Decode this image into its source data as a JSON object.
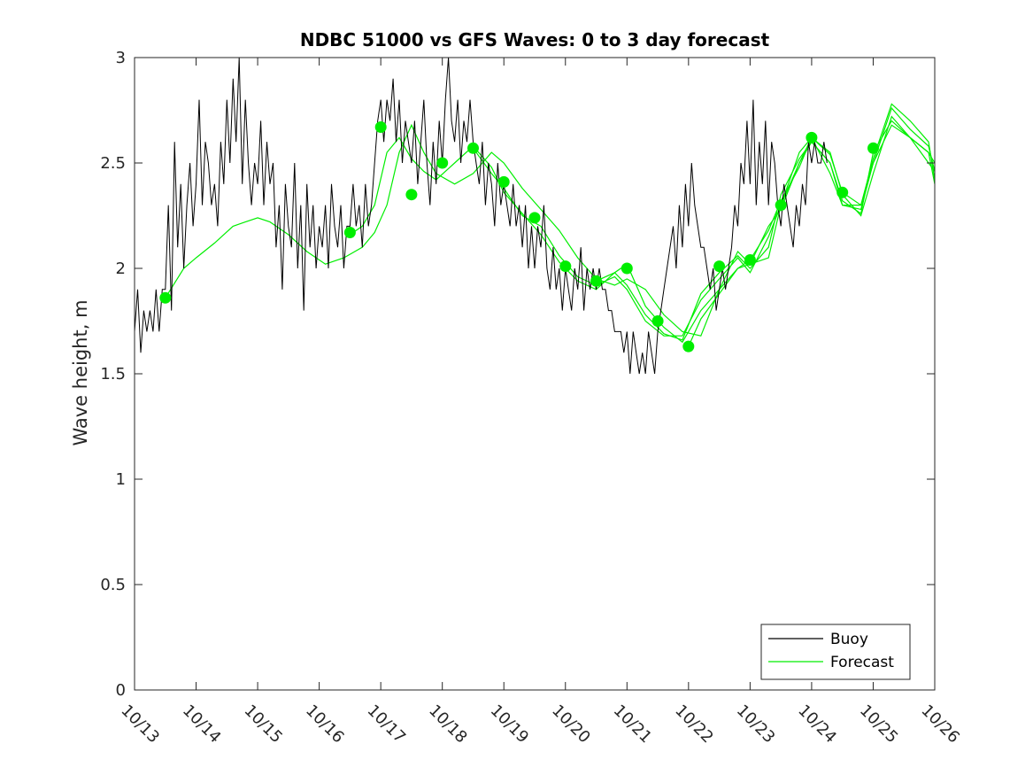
{
  "chart_data": {
    "type": "line",
    "title": "NDBC 51000 vs GFS Waves: 0 to 3 day forecast",
    "xlabel": "",
    "ylabel": "Wave height, m",
    "xlim": [
      "10/13",
      "10/26"
    ],
    "ylim": [
      0,
      3
    ],
    "y_ticks": [
      0,
      0.5,
      1,
      1.5,
      2,
      2.5,
      3
    ],
    "x_ticks": [
      "10/13",
      "10/14",
      "10/15",
      "10/16",
      "10/17",
      "10/18",
      "10/19",
      "10/20",
      "10/21",
      "10/22",
      "10/23",
      "10/24",
      "10/25",
      "10/26"
    ],
    "grid": false,
    "legend_position": "bottom-right",
    "colors": {
      "buoy": "#000000",
      "forecast": "#00ee00"
    },
    "series": [
      {
        "name": "Buoy",
        "x_days_from_1013": [
          0.0,
          0.05,
          0.1,
          0.15,
          0.2,
          0.25,
          0.3,
          0.35,
          0.4,
          0.45,
          0.5,
          0.55,
          0.6,
          0.65,
          0.7,
          0.75,
          0.8,
          0.85,
          0.9,
          0.95,
          1.0,
          1.05,
          1.1,
          1.15,
          1.2,
          1.25,
          1.3,
          1.35,
          1.4,
          1.45,
          1.5,
          1.55,
          1.6,
          1.65,
          1.7,
          1.75,
          1.8,
          1.85,
          1.9,
          1.95,
          2.0,
          2.05,
          2.1,
          2.15,
          2.2,
          2.25,
          2.3,
          2.35,
          2.4,
          2.45,
          2.5,
          2.55,
          2.6,
          2.65,
          2.7,
          2.75,
          2.8,
          2.85,
          2.9,
          2.95,
          3.0,
          3.05,
          3.1,
          3.15,
          3.2,
          3.25,
          3.3,
          3.35,
          3.4,
          3.45,
          3.5,
          3.55,
          3.6,
          3.65,
          3.7,
          3.75,
          3.8,
          3.85,
          3.9,
          3.95,
          4.0,
          4.05,
          4.1,
          4.15,
          4.2,
          4.25,
          4.3,
          4.35,
          4.4,
          4.45,
          4.5,
          4.55,
          4.6,
          4.65,
          4.7,
          4.75,
          4.8,
          4.85,
          4.9,
          4.95,
          5.0,
          5.05,
          5.1,
          5.15,
          5.2,
          5.25,
          5.3,
          5.35,
          5.4,
          5.45,
          5.5,
          5.55,
          5.6,
          5.65,
          5.7,
          5.75,
          5.8,
          5.85,
          5.9,
          5.95,
          6.0,
          6.05,
          6.1,
          6.15,
          6.2,
          6.25,
          6.3,
          6.35,
          6.4,
          6.45,
          6.5,
          6.55,
          6.6,
          6.65,
          6.7,
          6.75,
          6.8,
          6.85,
          6.9,
          6.95,
          7.0,
          7.05,
          7.1,
          7.15,
          7.2,
          7.25,
          7.3,
          7.35,
          7.4,
          7.45,
          7.5,
          7.55,
          7.6,
          7.65,
          7.7,
          7.75,
          7.8,
          7.85,
          7.9,
          7.95,
          8.0,
          8.05,
          8.1,
          8.15,
          8.2,
          8.25,
          8.3,
          8.35,
          8.4,
          8.45,
          8.5,
          8.55,
          8.6,
          8.65,
          8.7,
          8.75,
          8.8,
          8.85,
          8.9,
          8.95,
          9.0,
          9.05,
          9.1,
          9.15,
          9.2,
          9.25,
          9.3,
          9.35,
          9.4,
          9.45,
          9.5,
          9.55,
          9.6,
          9.65,
          9.7,
          9.75,
          9.8,
          9.85,
          9.9,
          9.95,
          10.0,
          10.05,
          10.1,
          10.15,
          10.2,
          10.25,
          10.3,
          10.35,
          10.4,
          10.45,
          10.5,
          10.55,
          10.6,
          10.65,
          10.7,
          10.75,
          10.8,
          10.85,
          10.9,
          10.95,
          11.0,
          11.05,
          11.1,
          11.15,
          11.2,
          11.25,
          11.3,
          11.35,
          11.4,
          11.45,
          11.5,
          11.55,
          11.6,
          11.65,
          11.7,
          11.75,
          11.8,
          11.85,
          11.9,
          11.95,
          12.0,
          12.05,
          12.1,
          12.15,
          12.2,
          12.25,
          12.3
        ],
        "values": [
          1.7,
          1.9,
          1.6,
          1.8,
          1.7,
          1.8,
          1.7,
          1.9,
          1.7,
          1.9,
          1.9,
          2.3,
          1.8,
          2.6,
          2.1,
          2.4,
          2.0,
          2.3,
          2.5,
          2.2,
          2.4,
          2.8,
          2.3,
          2.6,
          2.5,
          2.3,
          2.4,
          2.2,
          2.6,
          2.4,
          2.8,
          2.5,
          2.9,
          2.6,
          3.0,
          2.4,
          2.8,
          2.5,
          2.3,
          2.5,
          2.4,
          2.7,
          2.3,
          2.6,
          2.4,
          2.5,
          2.1,
          2.3,
          1.9,
          2.4,
          2.2,
          2.1,
          2.5,
          2.0,
          2.3,
          1.8,
          2.4,
          2.1,
          2.3,
          2.0,
          2.2,
          2.1,
          2.3,
          2.0,
          2.4,
          2.2,
          2.1,
          2.3,
          2.0,
          2.2,
          2.2,
          2.4,
          2.2,
          2.3,
          2.1,
          2.4,
          2.2,
          2.3,
          2.5,
          2.7,
          2.8,
          2.6,
          2.8,
          2.7,
          2.9,
          2.6,
          2.8,
          2.5,
          2.7,
          2.6,
          2.5,
          2.7,
          2.4,
          2.6,
          2.8,
          2.5,
          2.3,
          2.6,
          2.4,
          2.7,
          2.5,
          2.8,
          3.0,
          2.7,
          2.6,
          2.8,
          2.5,
          2.7,
          2.6,
          2.8,
          2.6,
          2.5,
          2.4,
          2.6,
          2.3,
          2.5,
          2.4,
          2.2,
          2.5,
          2.3,
          2.4,
          2.3,
          2.2,
          2.4,
          2.2,
          2.3,
          2.1,
          2.3,
          2.0,
          2.2,
          2.0,
          2.2,
          2.1,
          2.3,
          2.0,
          1.9,
          2.1,
          1.9,
          2.0,
          1.8,
          2.0,
          1.9,
          1.8,
          2.0,
          1.9,
          2.1,
          1.8,
          2.0,
          1.9,
          2.0,
          1.9,
          2.0,
          1.9,
          1.9,
          1.8,
          1.8,
          1.7,
          1.7,
          1.7,
          1.6,
          1.7,
          1.5,
          1.7,
          1.6,
          1.5,
          1.6,
          1.5,
          1.7,
          1.6,
          1.5,
          1.7,
          1.8,
          1.9,
          2.0,
          2.1,
          2.2,
          2.0,
          2.3,
          2.1,
          2.4,
          2.2,
          2.5,
          2.3,
          2.2,
          2.1,
          2.1,
          2.0,
          1.9,
          2.0,
          1.8,
          1.9,
          2.0,
          1.9,
          2.0,
          2.1,
          2.3,
          2.2,
          2.5,
          2.4,
          2.7,
          2.4,
          2.8,
          2.3,
          2.6,
          2.4,
          2.7,
          2.3,
          2.6,
          2.5,
          2.3,
          2.2,
          2.4,
          2.3,
          2.2,
          2.1,
          2.3,
          2.2,
          2.4,
          2.3,
          2.6,
          2.5,
          2.6,
          2.5,
          2.5,
          2.6,
          2.5
        ]
      },
      {
        "name": "Forecast",
        "runs": [
          {
            "x_days_from_1013": [
              0.5,
              0.8,
              1.0,
              1.3,
              1.6,
              1.8,
              2.0,
              2.2,
              2.5,
              2.8,
              3.1,
              3.4,
              3.7,
              3.9,
              4.1,
              4.3,
              4.5,
              4.7,
              4.9,
              5.2,
              5.5,
              5.8,
              6.0,
              6.3,
              6.6,
              6.9,
              7.2,
              7.5,
              7.8,
              8.0,
              8.3,
              8.6,
              8.9,
              9.2,
              9.5,
              9.8,
              10.0,
              10.3,
              10.5,
              10.8,
              11.0,
              11.3,
              11.5,
              11.8,
              12.0,
              12.3,
              12.6,
              12.9,
              13.0
            ],
            "values": [
              1.86,
              2.0,
              2.05,
              2.12,
              2.2,
              2.22,
              2.24,
              2.22,
              2.16,
              2.08,
              2.02,
              2.05,
              2.1,
              2.17,
              2.3,
              2.55,
              2.68,
              2.55,
              2.45,
              2.4,
              2.45,
              2.55,
              2.5,
              2.38,
              2.28,
              2.18,
              2.05,
              1.95,
              1.92,
              1.95,
              1.9,
              1.78,
              1.7,
              1.68,
              1.9,
              2.0,
              2.02,
              2.05,
              2.3,
              2.5,
              2.62,
              2.55,
              2.35,
              2.25,
              2.45,
              2.72,
              2.62,
              2.55,
              2.5
            ]
          },
          {
            "x_days_from_1013": [
              3.5,
              3.7,
              3.9,
              4.1,
              4.3,
              4.5,
              4.7,
              4.9,
              5.2,
              5.5,
              5.8,
              6.0,
              6.3,
              6.6,
              6.9,
              7.2,
              7.5,
              7.8,
              8.0,
              8.3,
              8.6,
              8.9,
              9.2,
              9.5,
              9.8,
              10.0,
              10.3,
              10.5,
              10.8,
              11.0,
              11.3,
              11.5,
              11.8,
              12.0,
              12.3,
              12.6,
              12.9,
              13.0
            ],
            "values": [
              2.16,
              2.2,
              2.3,
              2.55,
              2.62,
              2.52,
              2.46,
              2.42,
              2.5,
              2.58,
              2.48,
              2.36,
              2.26,
              2.16,
              2.03,
              1.94,
              1.9,
              1.98,
              1.92,
              1.78,
              1.69,
              1.66,
              1.88,
              1.98,
              2.06,
              2.0,
              2.1,
              2.35,
              2.52,
              2.6,
              2.5,
              2.3,
              2.28,
              2.5,
              2.76,
              2.66,
              2.58,
              2.46
            ]
          },
          {
            "x_days_from_1013": [
              5.5,
              5.8,
              6.0,
              6.3,
              6.6,
              6.9,
              7.2,
              7.5,
              7.8,
              8.0,
              8.3,
              8.6,
              8.9,
              9.2,
              9.5,
              9.8,
              10.0,
              10.3,
              10.5,
              10.8,
              11.0,
              11.3,
              11.5,
              11.8,
              12.0,
              12.3,
              12.6,
              12.9,
              13.0
            ],
            "values": [
              2.57,
              2.45,
              2.38,
              2.25,
              2.2,
              2.06,
              1.96,
              1.92,
              1.96,
              1.9,
              1.75,
              1.68,
              1.68,
              1.85,
              1.95,
              2.05,
              1.98,
              2.15,
              2.3,
              2.55,
              2.62,
              2.45,
              2.3,
              2.3,
              2.52,
              2.78,
              2.7,
              2.6,
              2.42
            ]
          },
          {
            "x_days_from_1013": [
              7.5,
              7.8,
              8.0,
              8.3,
              8.6,
              8.9,
              9.2,
              9.5,
              9.8,
              10.0,
              10.3,
              10.5,
              10.8,
              11.0,
              11.3,
              11.5,
              11.8,
              12.0,
              12.3,
              12.6,
              12.9,
              13.0
            ],
            "values": [
              1.94,
              1.98,
              2.02,
              1.82,
              1.72,
              1.65,
              1.8,
              1.9,
              2.08,
              2.02,
              2.2,
              2.28,
              2.5,
              2.6,
              2.5,
              2.32,
              2.26,
              2.55,
              2.7,
              2.62,
              2.55,
              2.4
            ]
          },
          {
            "x_days_from_1013": [
              9.0,
              9.2,
              9.5,
              9.8,
              10.0,
              10.3,
              10.5,
              10.8,
              11.0,
              11.3,
              11.5,
              11.8,
              12.0,
              12.3,
              12.6,
              12.9,
              13.0
            ],
            "values": [
              1.63,
              1.76,
              1.88,
              2.0,
              2.04,
              2.18,
              2.32,
              2.48,
              2.62,
              2.54,
              2.36,
              2.3,
              2.5,
              2.68,
              2.62,
              2.5,
              2.46
            ]
          }
        ],
        "markers": {
          "x_days_from_1013": [
            0.5,
            3.5,
            4.0,
            4.5,
            5.0,
            5.5,
            6.0,
            6.5,
            7.0,
            7.5,
            8.0,
            8.5,
            9.0,
            9.5,
            10.0,
            10.5,
            11.0,
            11.5,
            12.0
          ],
          "values": [
            1.86,
            2.17,
            2.67,
            2.35,
            2.5,
            2.57,
            2.41,
            2.24,
            2.01,
            1.94,
            2.0,
            1.75,
            1.63,
            2.01,
            2.04,
            2.3,
            2.62,
            2.36,
            2.57
          ]
        }
      }
    ]
  }
}
